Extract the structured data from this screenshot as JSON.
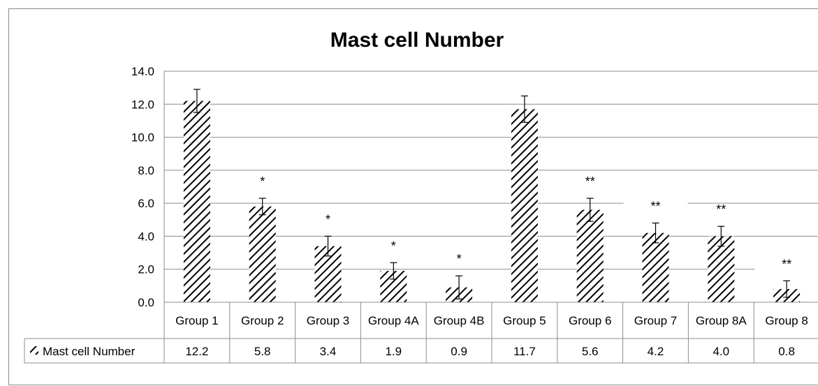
{
  "chart_data": {
    "type": "bar",
    "title": "Mast cell Number",
    "categories": [
      "Group 1",
      "Group 2",
      "Group 3",
      "Group 4A",
      "Group 4B",
      "Group 5",
      "Group 6",
      "Group 7",
      "Group 8A",
      "Group 8"
    ],
    "series": [
      {
        "name": "Mast cell Number",
        "values": [
          12.2,
          5.8,
          3.4,
          1.9,
          0.9,
          11.7,
          5.6,
          4.2,
          4.0,
          0.8
        ],
        "value_labels": [
          "12.2",
          "5.8",
          "3.4",
          "1.9",
          "0.9",
          "11.7",
          "5.6",
          "4.2",
          "4.0",
          "0.8"
        ],
        "error": [
          0.7,
          0.5,
          0.6,
          0.5,
          0.7,
          0.8,
          0.7,
          0.6,
          0.6,
          0.5
        ],
        "annotations": [
          "",
          "*",
          "*",
          "*",
          "*",
          "",
          "**",
          "**",
          "**",
          "**"
        ],
        "pattern": "diagonal-hatch",
        "color": "#000000"
      }
    ],
    "ylim": [
      0,
      14
    ],
    "yticks": [
      "0.0",
      "2.0",
      "4.0",
      "6.0",
      "8.0",
      "10.0",
      "12.0",
      "14.0"
    ],
    "grid": true,
    "legend": "data-table"
  }
}
